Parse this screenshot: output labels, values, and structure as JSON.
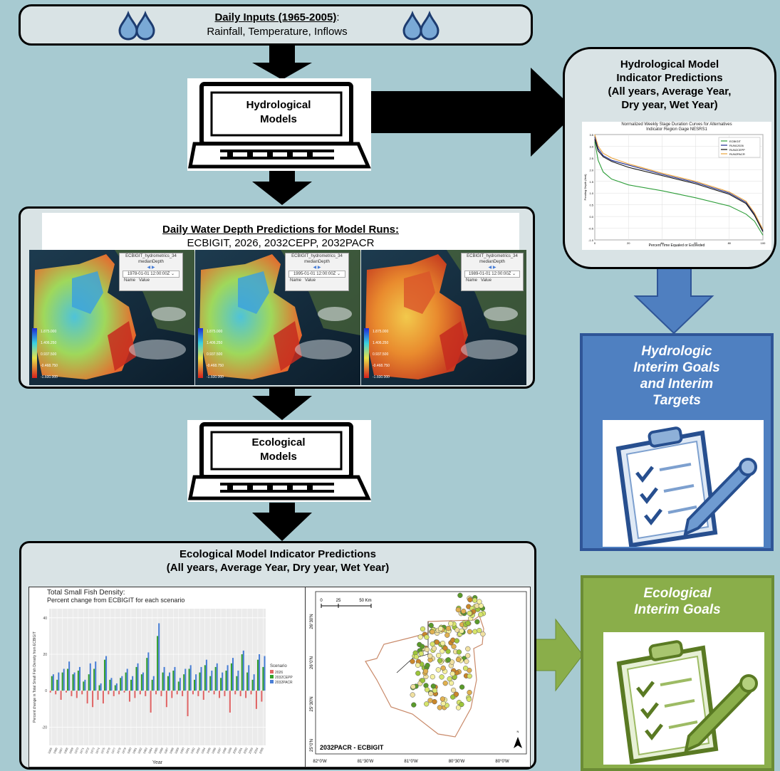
{
  "top_box": {
    "title": "Daily Inputs (1965-2005)",
    "colon": ":",
    "subtitle": "Rainfall, Temperature, Inflows"
  },
  "hydro_models": {
    "label_line1": "Hydrological",
    "label_line2": "Models"
  },
  "eco_models": {
    "label_line1": "Ecological",
    "label_line2": "Models"
  },
  "hydro_indicator": {
    "title_line1": "Hydrological Model",
    "title_line2": "Indicator Predictions",
    "title_line3": "(All years, Average Year,",
    "title_line4": "Dry year, Wet Year)",
    "chart_title_line1": "Normalized Weekly Stage Duration Curves for Alternatives",
    "chart_title_line2": "Indicator Region Gage NESRS1",
    "xlabel": "Percent Time Equaled or Exceeded",
    "ylabel": "Ponding Depth (feet)",
    "legend": [
      "ECBIGIT",
      "RUN12026",
      "RUN2CEPP",
      "RUN2PACR"
    ],
    "colors": [
      "#2e9e3a",
      "#1e2d8f",
      "#111111",
      "#e8a13a"
    ],
    "yticks": [
      "3.5",
      "3.0",
      "2.5",
      "2.0",
      "1.5",
      "1.0",
      "0.5",
      "0.0",
      "-0.5",
      "-1.0"
    ],
    "xticks": [
      "0",
      "20",
      "40",
      "60",
      "80",
      "100"
    ]
  },
  "depth_box": {
    "title": "Daily Water Depth Predictions for Model Runs:",
    "subtitle": "ECBIGIT, 2026, 2032CEPP, 2032PACR",
    "maps": [
      {
        "layer": "ECBIGIT_hydrometrics_34",
        "var": "medianDepth",
        "date": "1978-01-01 12:00:00Z",
        "name": "Name",
        "value": "Value",
        "scale": [
          "1.875.000",
          "1.406.250",
          "0.937.500",
          "-0.468.750",
          "-1.600.000"
        ]
      },
      {
        "layer": "ECBIGIT_hydrometrics_34",
        "var": "medianDepth",
        "date": "1995-01-01 12:00:00Z",
        "name": "Name",
        "value": "Value",
        "scale": [
          "1.875.000",
          "1.406.250",
          "0.937.500",
          "-0.468.750",
          "-1.600.000"
        ]
      },
      {
        "layer": "ECBIGIT_hydrometrics_34",
        "var": "medianDepth",
        "date": "1989-01-01 12:00:00Z",
        "name": "Name",
        "value": "Value",
        "scale": [
          "1.875.000",
          "1.406.250",
          "0.937.500",
          "-0.468.750",
          "-1.600.000"
        ]
      }
    ]
  },
  "hydro_goals": {
    "text_line1": "Hydrologic",
    "text_line2": "Interim Goals",
    "text_line3": "and Interim",
    "text_line4": "Targets"
  },
  "eco_goals": {
    "text_line1": "Ecological",
    "text_line2": "Interim Goals"
  },
  "eco_indicator": {
    "title_line1": "Ecological Model Indicator Predictions",
    "title_line2": "(All years, Average Year, Dry year, Wet Year)"
  },
  "chart_data": {
    "type": "bar",
    "title": "Total Small Fish Density:",
    "subtitle": "Percent change from ECBIGIT for each scenario",
    "xlabel": "Year",
    "ylabel": "Percent change in Total Small Fish Density from ECBIGIT",
    "ylim": [
      -30,
      45
    ],
    "yticks": [
      -20,
      0,
      20,
      40
    ],
    "legend_title": "Scenario",
    "categories": [
      "1965",
      "1966",
      "1967",
      "1968",
      "1969",
      "1970",
      "1971",
      "1972",
      "1973",
      "1974",
      "1975",
      "1976",
      "1977",
      "1978",
      "1979",
      "1980",
      "1981",
      "1982",
      "1983",
      "1984",
      "1985",
      "1986",
      "1987",
      "1988",
      "1989",
      "1990",
      "1991",
      "1992",
      "1993",
      "1994",
      "1995",
      "1996",
      "1997",
      "1998",
      "1999",
      "2000",
      "2001",
      "2002",
      "2003",
      "2004",
      "2005"
    ],
    "series": [
      {
        "name": "2026",
        "color": "#e06666",
        "values": [
          -1,
          -2,
          -5,
          -1,
          -3,
          -4,
          -2,
          -7,
          -9,
          -5,
          -7,
          -2,
          -3,
          -2,
          -1,
          -6,
          -4,
          -2,
          -3,
          -12,
          -2,
          -3,
          -9,
          -4,
          -2,
          -3,
          -14,
          -2,
          -3,
          -5,
          -1,
          -2,
          -4,
          -3,
          -12,
          -2,
          -3,
          -4,
          -2,
          -10,
          -6
        ]
      },
      {
        "name": "2032CEPP",
        "color": "#33a02c",
        "values": [
          8,
          6,
          10,
          12,
          9,
          11,
          5,
          9,
          12,
          3,
          17,
          6,
          3,
          7,
          10,
          6,
          13,
          9,
          18,
          6,
          30,
          10,
          8,
          11,
          5,
          9,
          12,
          6,
          10,
          14,
          8,
          13,
          7,
          11,
          15,
          8,
          20,
          10,
          6,
          17,
          13
        ]
      },
      {
        "name": "2032PACR",
        "color": "#4a7fd6",
        "values": [
          9,
          10,
          12,
          16,
          10,
          13,
          6,
          15,
          16,
          4,
          19,
          7,
          4,
          8,
          12,
          8,
          15,
          10,
          21,
          8,
          37,
          13,
          10,
          13,
          7,
          12,
          14,
          9,
          13,
          17,
          11,
          15,
          10,
          14,
          18,
          11,
          22,
          14,
          9,
          20,
          19
        ]
      }
    ]
  },
  "map_panel": {
    "scale_labels": [
      "0",
      "25",
      "50 Km"
    ],
    "lat_labels": [
      "26°30'N",
      "26°0'N",
      "25°30'N",
      "25°0'N"
    ],
    "lon_labels": [
      "82°0'W",
      "81°30'W",
      "81°0'W",
      "80°30'W",
      "80°0'W"
    ],
    "caption": "2032PACR - ECBIGIT",
    "north": "N"
  }
}
